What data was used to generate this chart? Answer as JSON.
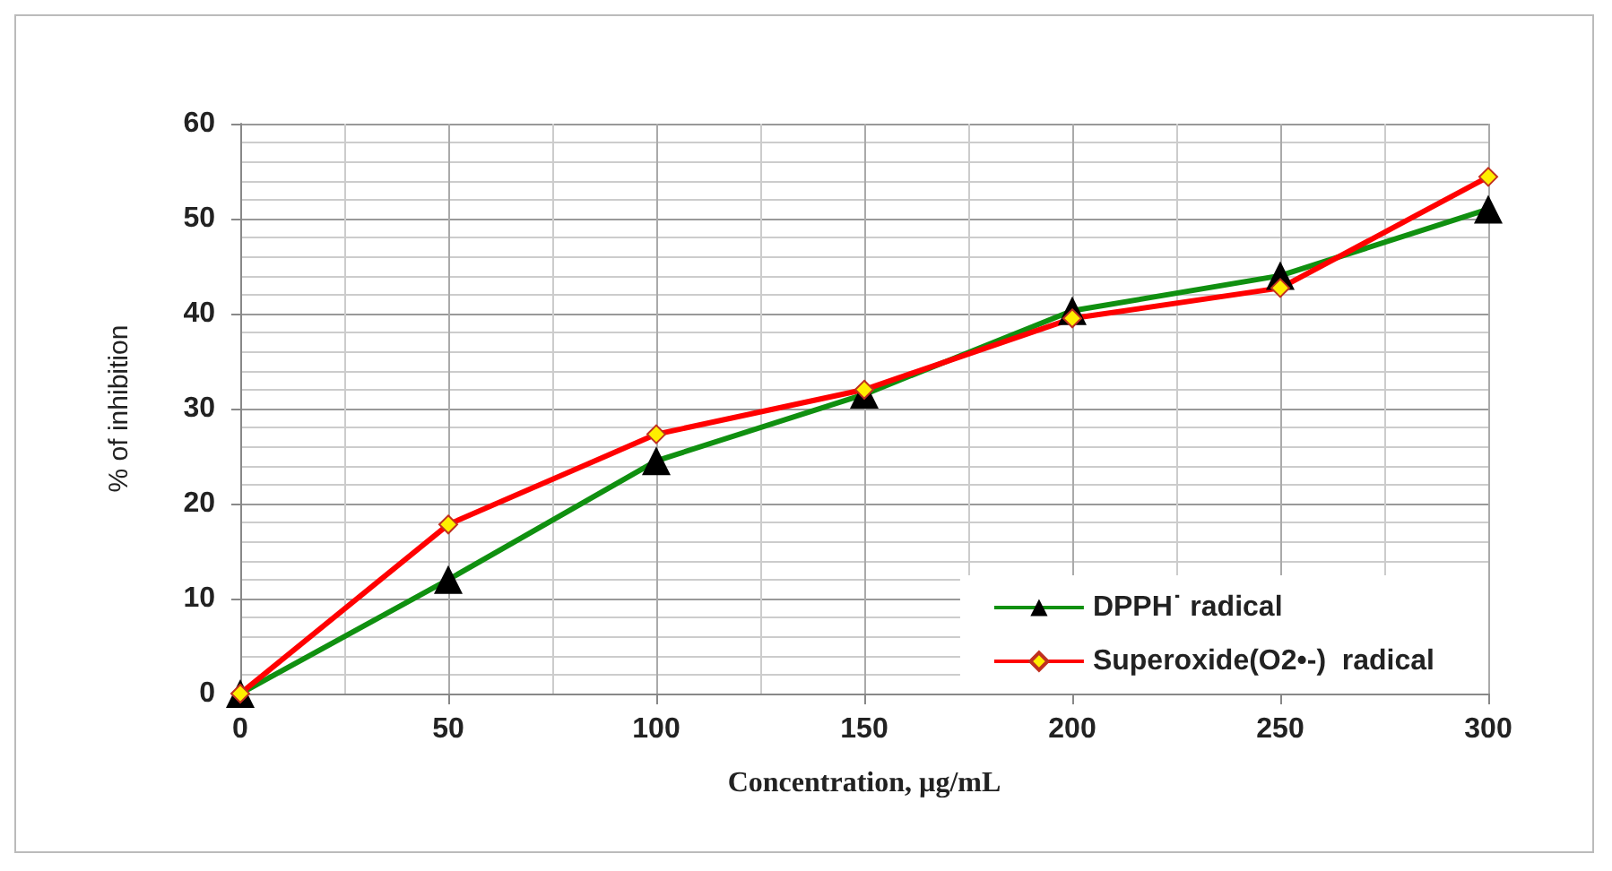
{
  "chart_data": {
    "type": "line",
    "xlabel": "Concentration, µg/mL",
    "ylabel": "% of inhibition",
    "x": [
      0,
      50,
      100,
      150,
      200,
      250,
      300
    ],
    "series": [
      {
        "name": "DPPH˙ radical",
        "color": "#109010",
        "marker": "triangle",
        "values": [
          0,
          12,
          24.5,
          31.5,
          40.3,
          44,
          51
        ]
      },
      {
        "name": "Superoxide(O2•-)  radical",
        "color": "#ff0000",
        "marker": "diamond",
        "values": [
          0,
          17.8,
          27.3,
          32,
          39.5,
          42.7,
          54.4
        ]
      }
    ],
    "xlim": [
      0,
      300
    ],
    "xticks": [
      0,
      50,
      100,
      150,
      200,
      250,
      300
    ],
    "ylim": [
      0,
      60
    ],
    "yticks": [
      0,
      10,
      20,
      30,
      40,
      50,
      60
    ],
    "grid": true,
    "legend": "bottom right"
  }
}
